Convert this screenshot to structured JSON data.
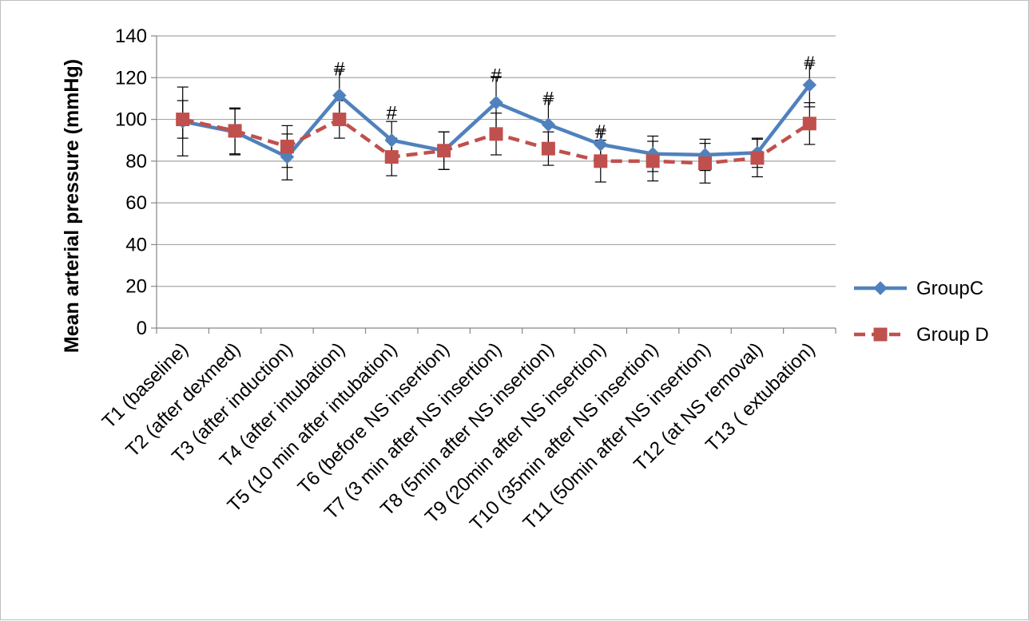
{
  "chart_data": {
    "type": "line",
    "title": "",
    "xlabel": "",
    "ylabel": "Mean arterial pressure (mmHg)",
    "ylim": [
      0,
      140
    ],
    "yticks": [
      0,
      20,
      40,
      60,
      80,
      100,
      120,
      140
    ],
    "grid": true,
    "legend_position": "right",
    "categories": [
      "T1 (baseline)",
      "T2 (after dexmed)",
      "T3 (after induction)",
      "T4 (after intubation)",
      "T5 (10 min after intubation)",
      "T6 (before NS insertion)",
      "T7 (3 min after NS insertion)",
      "T8 (5min after NS insertion)",
      "T9 (20min after NS insertion)",
      "T10 (35min after NS insertion)",
      "T11 (50min after NS insertion)",
      "T12 (at NS removal)",
      "T13 ( extubation)"
    ],
    "series": [
      {
        "name": "GroupC",
        "color": "#4f81bd",
        "marker": "diamond",
        "line": "solid",
        "values": [
          99,
          94,
          82,
          111.5,
          90,
          85,
          108,
          97.5,
          88,
          83.5,
          83,
          84,
          116.5
        ],
        "error": [
          16.5,
          11,
          11,
          12.5,
          9,
          9,
          12.5,
          12.5,
          6.5,
          8.5,
          7.5,
          7,
          10.5
        ]
      },
      {
        "name": "Group D",
        "color": "#c0504d",
        "marker": "square",
        "line": "dashed",
        "values": [
          100,
          94.5,
          87,
          100,
          82,
          85,
          93,
          86,
          80,
          80,
          79,
          81.5,
          98
        ],
        "error": [
          9,
          11,
          10,
          9,
          9,
          9,
          10,
          8,
          10,
          9.5,
          9.5,
          9,
          10
        ]
      }
    ],
    "annotations": [
      {
        "category_index": 3,
        "text": "#",
        "y": 121
      },
      {
        "category_index": 4,
        "text": "#",
        "y": 100
      },
      {
        "category_index": 6,
        "text": "#",
        "y": 118
      },
      {
        "category_index": 7,
        "text": "#",
        "y": 107
      },
      {
        "category_index": 8,
        "text": "#",
        "y": 91
      },
      {
        "category_index": 12,
        "text": "#",
        "y": 124
      }
    ]
  }
}
